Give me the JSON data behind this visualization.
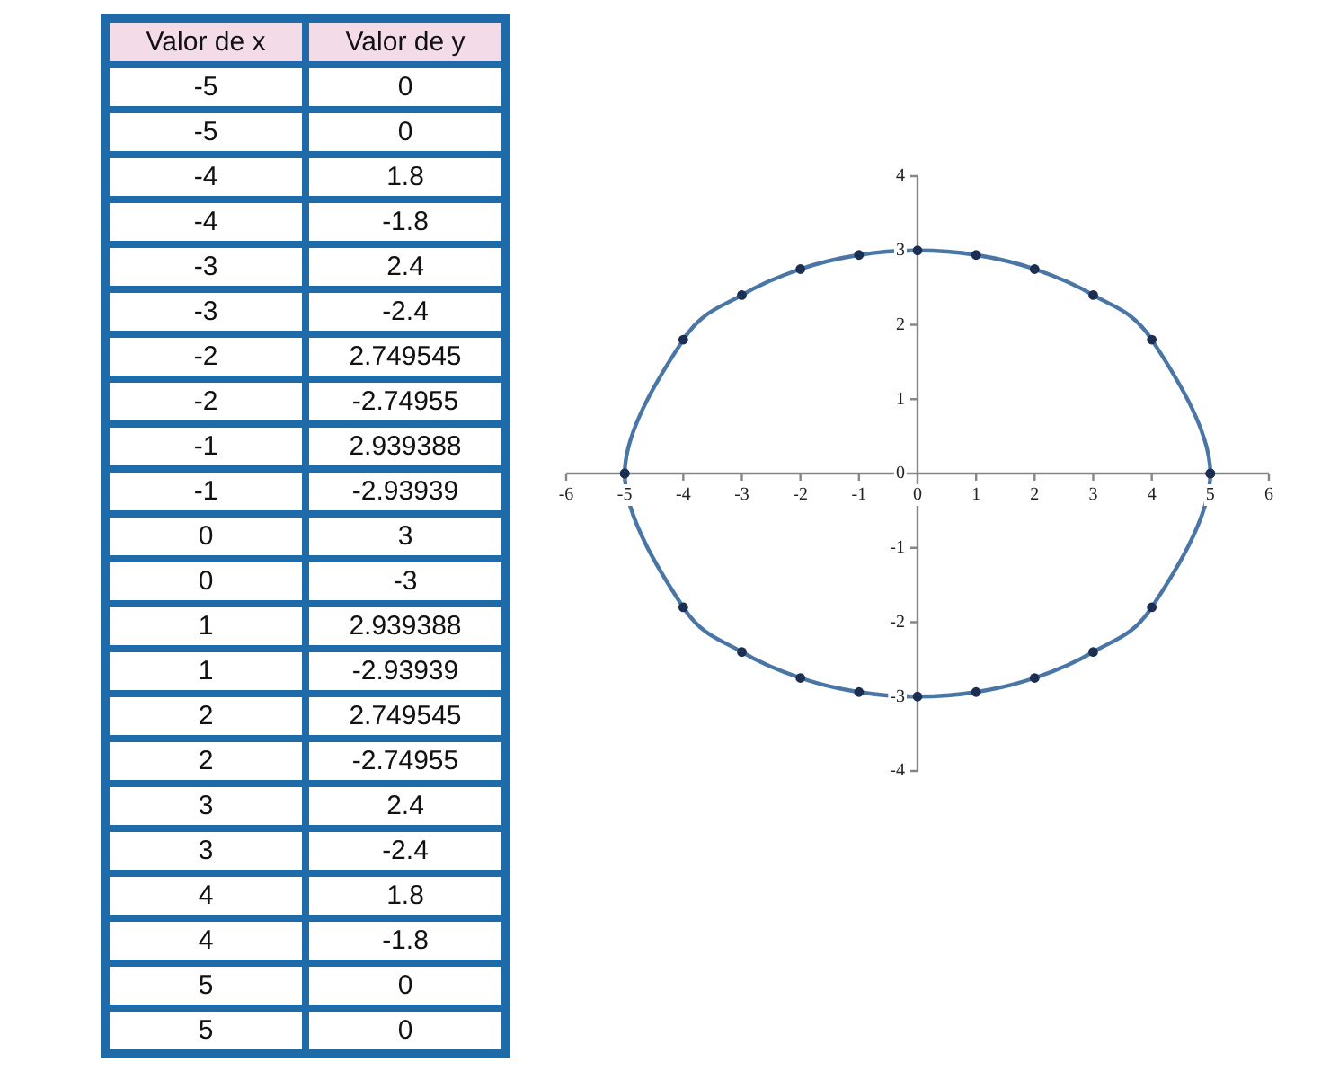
{
  "chart_data": {
    "type": "scatter",
    "marker": "circle",
    "xlim": [
      -6,
      6
    ],
    "xticks": [
      -6,
      -5,
      -4,
      -3,
      -2,
      -1,
      0,
      1,
      2,
      3,
      4,
      5,
      6
    ],
    "ylim": [
      -4,
      4
    ],
    "yticks": [
      -4,
      -3,
      -2,
      -1,
      0,
      1,
      2,
      3,
      4
    ],
    "annotations": [
      "Valor de x",
      "Valor de y",
      "-5",
      "0",
      "-5",
      "0",
      "-4",
      "1.8",
      "-4",
      "-1.8",
      "-3",
      "2.4",
      "-3",
      "-2.4",
      "-2",
      "2.749545",
      "-2",
      "-2.74955",
      "-1",
      "2.939388",
      "-1",
      "-2.93939",
      "0",
      "3",
      "0",
      "-3",
      "1",
      "2.939388",
      "1",
      "-2.93939",
      "2",
      "2.749545",
      "2",
      "-2.74955",
      "3",
      "2.4",
      "3",
      "-2.4",
      "4",
      "1.8",
      "4",
      "-1.8",
      "5",
      "0",
      "5",
      "0"
    ],
    "series": [
      {
        "type": "scatter",
        "color": "#1c2f52",
        "x": [
          -5,
          -5,
          -4,
          -4,
          -3,
          -3,
          -2,
          -2,
          -1,
          -1,
          0,
          0,
          1,
          1,
          2,
          2,
          3,
          3,
          4,
          4,
          5,
          5
        ],
        "values": [
          0,
          0,
          1.8,
          -1.8,
          2.4,
          -2.4,
          2.749545,
          -2.74955,
          2.939388,
          -2.93939,
          3,
          -3,
          2.939388,
          -2.93939,
          2.749545,
          -2.74955,
          2.4,
          -2.4,
          1.8,
          -1.8,
          0,
          0
        ]
      }
    ]
  }
}
